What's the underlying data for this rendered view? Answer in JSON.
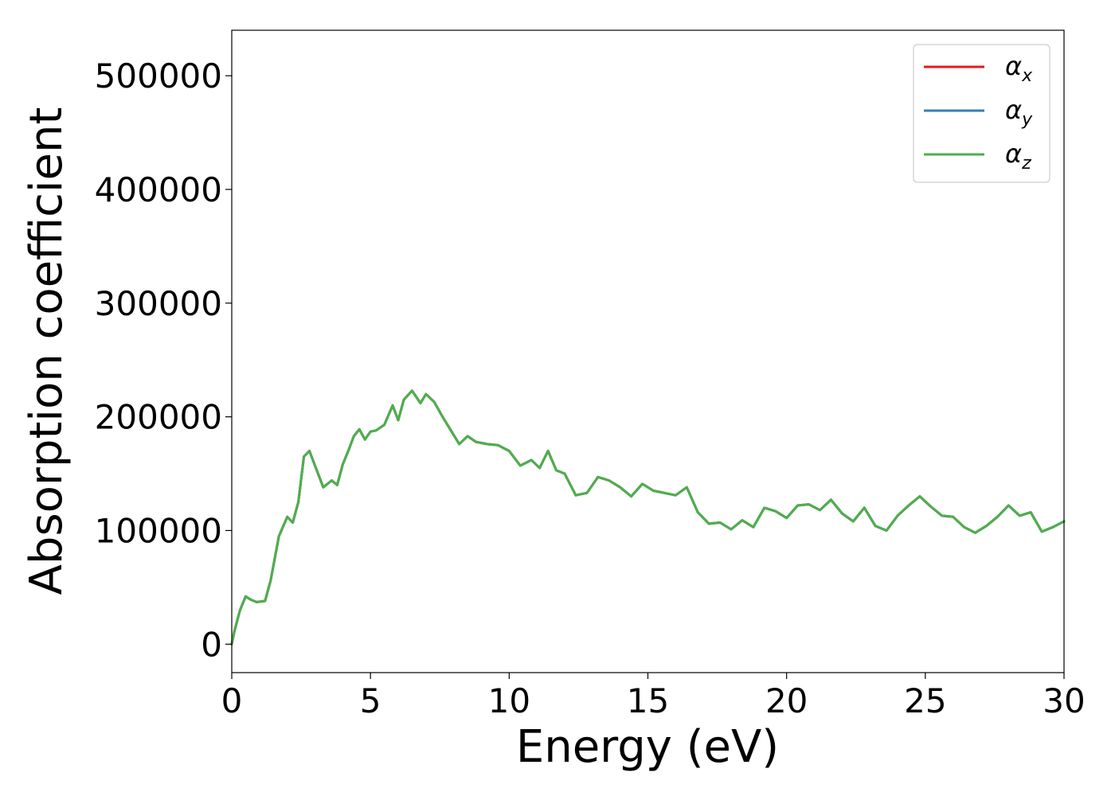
{
  "chart_data": {
    "type": "line",
    "title": "",
    "xlabel": "Energy (eV)",
    "ylabel": "Absorption coefficient",
    "xlim": [
      0,
      30
    ],
    "ylim": [
      -25000,
      540000
    ],
    "xticks": [
      0,
      5,
      10,
      15,
      20,
      25,
      30
    ],
    "xtick_labels": [
      "0",
      "5",
      "10",
      "15",
      "20",
      "25",
      "30"
    ],
    "yticks": [
      0,
      100000,
      200000,
      300000,
      400000,
      500000
    ],
    "ytick_labels": [
      "0",
      "100000",
      "200000",
      "300000",
      "400000",
      "500000"
    ],
    "grid": false,
    "legend_position": "top-right",
    "series": [
      {
        "name": "α",
        "subscript": "x",
        "color": "#e41a1c",
        "ref": "curve"
      },
      {
        "name": "α",
        "subscript": "y",
        "color": "#377eb8",
        "ref": "curve"
      },
      {
        "name": "α",
        "subscript": "z",
        "color": "#4daf4a",
        "ref": "curve"
      }
    ],
    "curve": {
      "x": [
        0,
        0.1,
        0.3,
        0.5,
        0.7,
        0.9,
        1.2,
        1.4,
        1.7,
        2.0,
        2.2,
        2.4,
        2.6,
        2.8,
        3.0,
        3.3,
        3.6,
        3.8,
        4.0,
        4.2,
        4.4,
        4.6,
        4.8,
        5.0,
        5.2,
        5.5,
        5.8,
        6.0,
        6.2,
        6.5,
        6.8,
        7.0,
        7.3,
        7.6,
        7.9,
        8.2,
        8.5,
        8.8,
        9.2,
        9.6,
        10.0,
        10.4,
        10.8,
        11.1,
        11.4,
        11.7,
        12.0,
        12.4,
        12.8,
        13.2,
        13.6,
        14.0,
        14.4,
        14.8,
        15.2,
        15.6,
        16.0,
        16.4,
        16.8,
        17.2,
        17.6,
        18.0,
        18.4,
        18.8,
        19.2,
        19.6,
        20.0,
        20.4,
        20.8,
        21.2,
        21.6,
        22.0,
        22.4,
        22.8,
        23.2,
        23.6,
        24.0,
        24.4,
        24.8,
        25.2,
        25.6,
        26.0,
        26.4,
        26.8,
        27.2,
        27.6,
        28.0,
        28.4,
        28.8,
        29.2,
        29.6,
        30.0
      ],
      "y": [
        0,
        12000,
        30000,
        42000,
        39000,
        37000,
        38000,
        56000,
        95000,
        112000,
        107000,
        125000,
        165000,
        170000,
        157000,
        138000,
        144000,
        140000,
        158000,
        170000,
        183000,
        189000,
        180000,
        187000,
        188000,
        193000,
        210000,
        197000,
        215000,
        223000,
        212000,
        220000,
        213000,
        200000,
        188000,
        176000,
        183000,
        178000,
        176000,
        175000,
        170000,
        157000,
        162000,
        155000,
        170000,
        153000,
        150000,
        131000,
        133000,
        147000,
        144000,
        138000,
        130000,
        141000,
        135000,
        133000,
        131000,
        138000,
        116000,
        106000,
        107000,
        101000,
        109000,
        103000,
        120000,
        117000,
        111000,
        122000,
        123000,
        118000,
        127000,
        115000,
        108000,
        120000,
        104000,
        100000,
        113000,
        122000,
        130000,
        121000,
        113000,
        112000,
        103000,
        98000,
        104000,
        112000,
        122000,
        113000,
        116000,
        99000,
        103000,
        108000
      ]
    }
  }
}
